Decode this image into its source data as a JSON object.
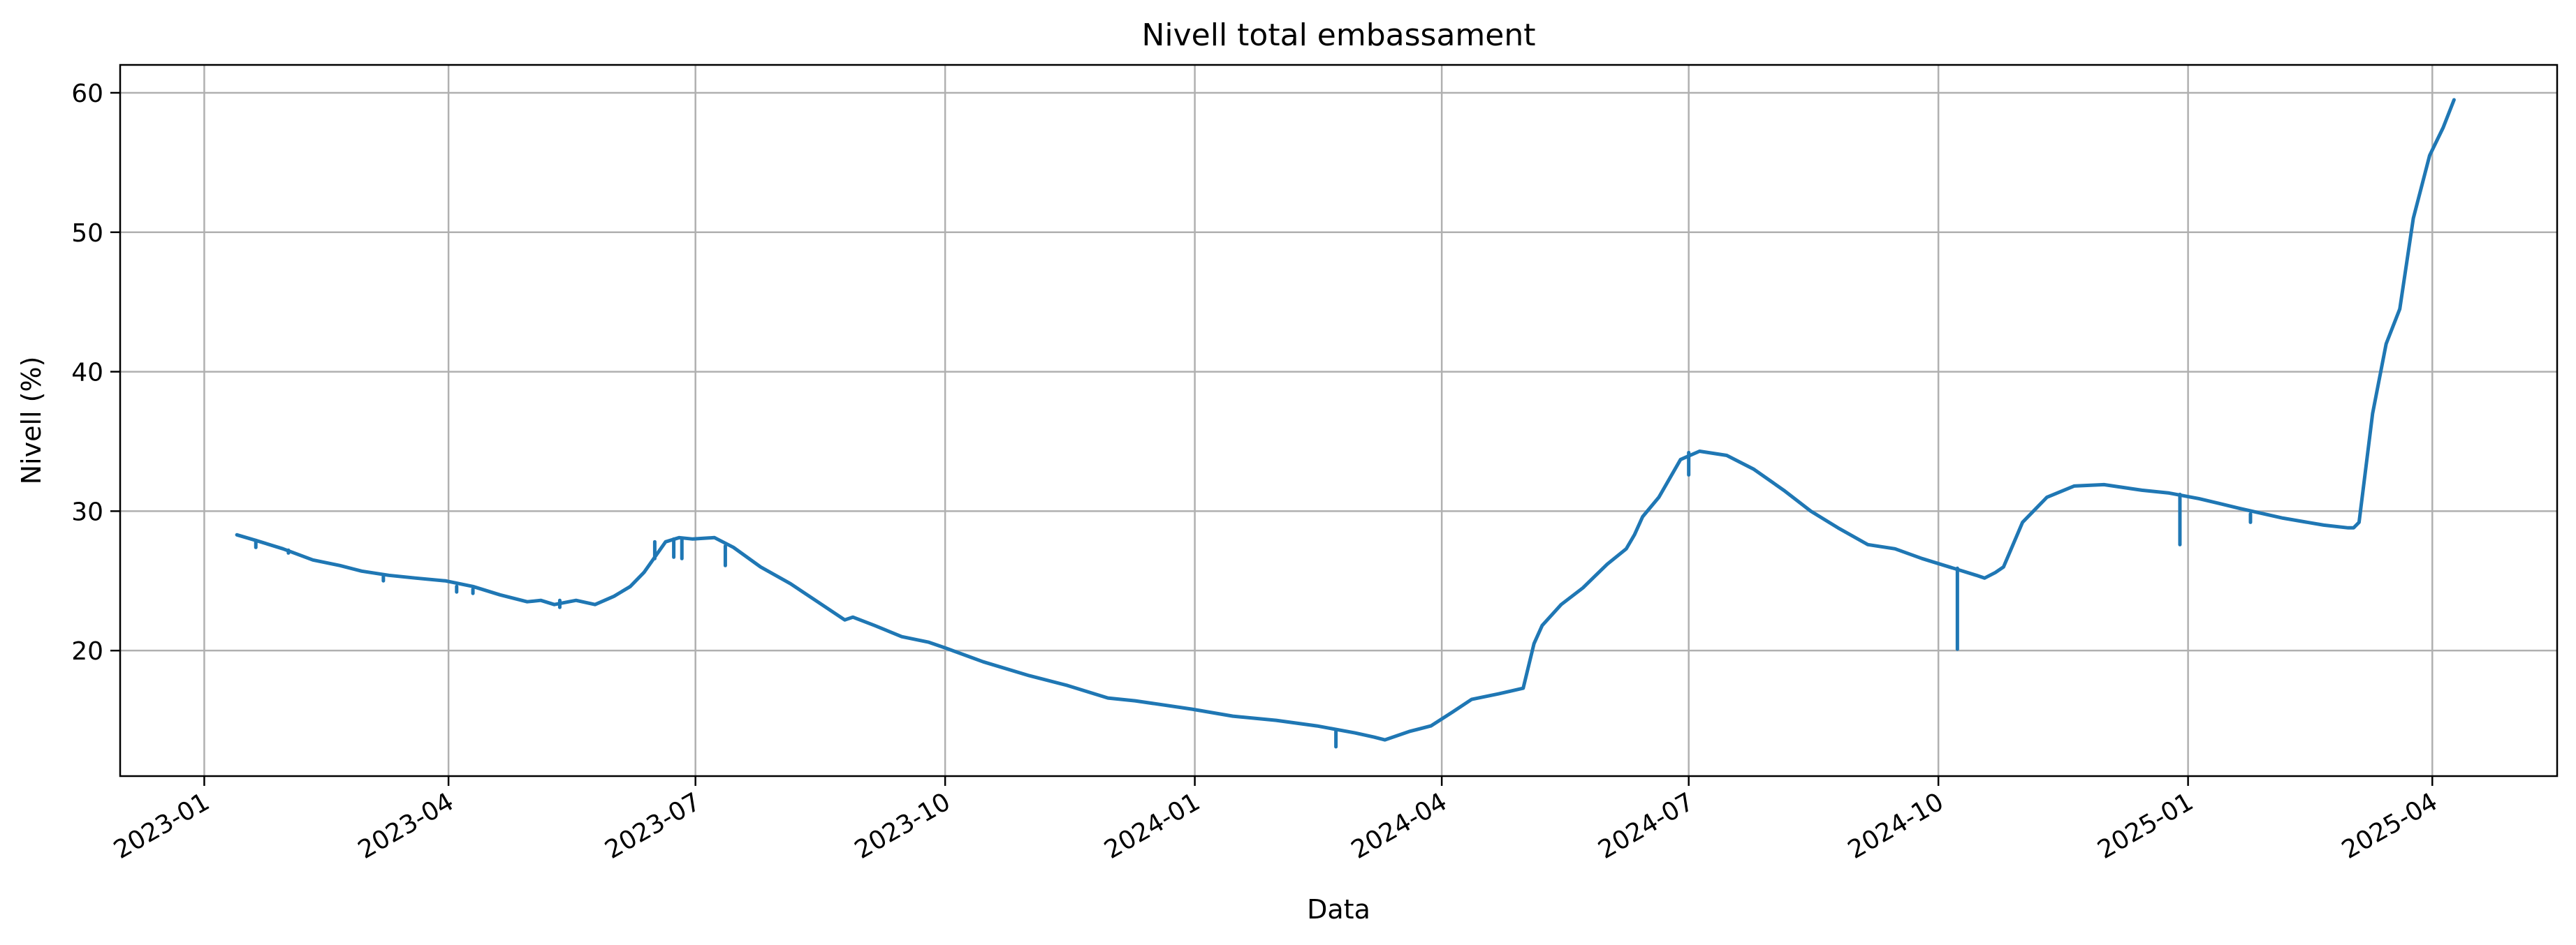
{
  "chart_data": {
    "type": "line",
    "title": "Nivell total embassament",
    "xlabel": "Data",
    "ylabel": "Nivell (%)",
    "x_axis_type": "date",
    "xlim": [
      "2022-12-01",
      "2025-05-17"
    ],
    "ylim": [
      11,
      62
    ],
    "grid": true,
    "line_color": "#1f77b4",
    "grid_color": "#b0b0b0",
    "x_ticks": [
      "2023-01-01",
      "2023-04-01",
      "2023-07-01",
      "2023-10-01",
      "2024-01-01",
      "2024-04-01",
      "2024-07-01",
      "2024-10-01",
      "2025-01-01",
      "2025-04-01"
    ],
    "x_tick_labels": [
      "2023-01",
      "2023-04",
      "2023-07",
      "2023-10",
      "2024-01",
      "2024-04",
      "2024-07",
      "2024-10",
      "2025-01",
      "2025-04"
    ],
    "y_ticks": [
      20,
      30,
      40,
      50,
      60
    ],
    "y_tick_labels": [
      "20",
      "30",
      "40",
      "50",
      "60"
    ],
    "series": [
      {
        "x": [
          "2023-01-13",
          "2023-01-20",
          "2023-01-30",
          "2023-02-10",
          "2023-02-20",
          "2023-02-28",
          "2023-03-10",
          "2023-03-20",
          "2023-03-31",
          "2023-04-10",
          "2023-04-20",
          "2023-04-30",
          "2023-05-05",
          "2023-05-10",
          "2023-05-18",
          "2023-05-25",
          "2023-06-01",
          "2023-06-07",
          "2023-06-12",
          "2023-06-16",
          "2023-06-20",
          "2023-06-25",
          "2023-06-30",
          "2023-07-08",
          "2023-07-15",
          "2023-07-25",
          "2023-08-05",
          "2023-08-15",
          "2023-08-25",
          "2023-08-28",
          "2023-09-05",
          "2023-09-15",
          "2023-09-25",
          "2023-10-01",
          "2023-10-15",
          "2023-11-01",
          "2023-11-15",
          "2023-11-30",
          "2023-12-10",
          "2023-12-31",
          "2024-01-15",
          "2024-01-31",
          "2024-02-15",
          "2024-02-29",
          "2024-03-07",
          "2024-03-11",
          "2024-03-20",
          "2024-03-28",
          "2024-04-05",
          "2024-04-12",
          "2024-04-22",
          "2024-05-01",
          "2024-05-05",
          "2024-05-08",
          "2024-05-15",
          "2024-05-23",
          "2024-06-01",
          "2024-06-08",
          "2024-06-11",
          "2024-06-14",
          "2024-06-20",
          "2024-06-28",
          "2024-07-05",
          "2024-07-15",
          "2024-07-25",
          "2024-08-05",
          "2024-08-15",
          "2024-08-25",
          "2024-09-05",
          "2024-09-15",
          "2024-09-25",
          "2024-10-05",
          "2024-10-15",
          "2024-10-18",
          "2024-10-22",
          "2024-10-25",
          "2024-11-01",
          "2024-11-10",
          "2024-11-20",
          "2024-12-01",
          "2024-12-15",
          "2024-12-25",
          "2025-01-05",
          "2025-01-20",
          "2025-02-05",
          "2025-02-20",
          "2025-03-01",
          "2025-03-03",
          "2025-03-05",
          "2025-03-10",
          "2025-03-15",
          "2025-03-20",
          "2025-03-25",
          "2025-03-31",
          "2025-04-05",
          "2025-04-09"
        ],
        "y": [
          28.3,
          27.9,
          27.3,
          26.5,
          26.1,
          25.7,
          25.4,
          25.2,
          25.0,
          24.6,
          24.0,
          23.5,
          23.6,
          23.3,
          23.6,
          23.3,
          23.9,
          24.6,
          25.6,
          26.7,
          27.8,
          28.1,
          28.0,
          28.1,
          27.4,
          26.0,
          24.8,
          23.5,
          22.2,
          22.4,
          21.8,
          21.0,
          20.6,
          20.2,
          19.2,
          18.2,
          17.5,
          16.6,
          16.4,
          15.8,
          15.3,
          15.0,
          14.6,
          14.1,
          13.8,
          13.6,
          14.2,
          14.6,
          15.6,
          16.5,
          16.9,
          17.3,
          20.5,
          21.8,
          23.3,
          24.5,
          26.2,
          27.3,
          28.3,
          29.6,
          31.0,
          33.7,
          34.3,
          34.0,
          33.0,
          31.5,
          30.0,
          28.8,
          27.6,
          27.3,
          26.6,
          26.0,
          25.4,
          25.2,
          25.6,
          26.0,
          29.2,
          31.0,
          31.8,
          31.9,
          31.5,
          31.3,
          30.9,
          30.2,
          29.5,
          29.0,
          28.8,
          28.8,
          29.2,
          37.0,
          42.0,
          44.5,
          51.0,
          55.5,
          57.5,
          59.5
        ]
      },
      {
        "x": [
          "2023-01-20",
          "2023-02-01",
          "2023-03-08",
          "2023-04-04",
          "2023-04-10",
          "2023-05-12",
          "2023-06-16",
          "2023-06-23",
          "2023-06-26",
          "2023-07-12",
          "2024-02-22",
          "2024-07-01",
          "2024-10-08",
          "2024-12-29",
          "2025-01-24"
        ],
        "y_high": [
          27.9,
          27.2,
          25.3,
          24.6,
          24.4,
          23.6,
          27.8,
          28.0,
          28.0,
          27.5,
          14.2,
          34.2,
          25.9,
          31.2,
          29.8
        ],
        "y_low": [
          27.4,
          27.0,
          25.0,
          24.2,
          24.1,
          23.1,
          26.6,
          26.7,
          26.6,
          26.1,
          13.1,
          32.6,
          20.1,
          27.6,
          29.2
        ]
      }
    ]
  }
}
